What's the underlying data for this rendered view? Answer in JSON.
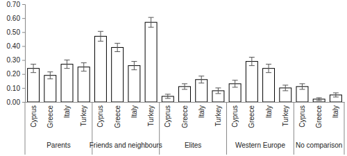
{
  "chart_data": {
    "type": "bar",
    "color": "#ffffff",
    "ylim": [
      0,
      0.7
    ],
    "yticks": [
      {
        "value": 0,
        "label": "0.00"
      },
      {
        "value": 0.1,
        "label": "0.10"
      },
      {
        "value": 0.2,
        "label": "0.20"
      },
      {
        "value": 0.3,
        "label": "0.30"
      },
      {
        "value": 0.4,
        "label": "0.40"
      },
      {
        "value": 0.5,
        "label": "0.50"
      },
      {
        "value": 0.6,
        "label": "0.60"
      },
      {
        "value": 0.7,
        "label": "0.70"
      }
    ],
    "grid": false,
    "groups": [
      {
        "name": "Parents",
        "categories": [
          "Cyprus",
          "Greece",
          "Italy",
          "Turkey"
        ],
        "values": [
          0.24,
          0.19,
          0.27,
          0.25
        ],
        "errors": [
          0.03,
          0.025,
          0.03,
          0.03
        ]
      },
      {
        "name": "Friends and neighbours",
        "categories": [
          "Cyprus",
          "Greece",
          "Italy",
          "Turkey"
        ],
        "values": [
          0.47,
          0.39,
          0.26,
          0.57
        ],
        "errors": [
          0.035,
          0.03,
          0.03,
          0.035
        ]
      },
      {
        "name": "Elites",
        "categories": [
          "Cyprus",
          "Greece",
          "Italy",
          "Turkey"
        ],
        "values": [
          0.04,
          0.11,
          0.16,
          0.08
        ],
        "errors": [
          0.015,
          0.02,
          0.025,
          0.02
        ]
      },
      {
        "name": "Western Europe",
        "categories": [
          "Cyprus",
          "Greece",
          "Italy",
          "Turkey"
        ],
        "values": [
          0.13,
          0.29,
          0.24,
          0.1
        ],
        "errors": [
          0.025,
          0.03,
          0.03,
          0.02
        ]
      },
      {
        "name": "No comparison",
        "categories": [
          "Cyprus",
          "Greece",
          "Italy"
        ],
        "values": [
          0.11,
          0.02,
          0.05
        ],
        "errors": [
          0.02,
          0.01,
          0.015
        ]
      }
    ]
  }
}
